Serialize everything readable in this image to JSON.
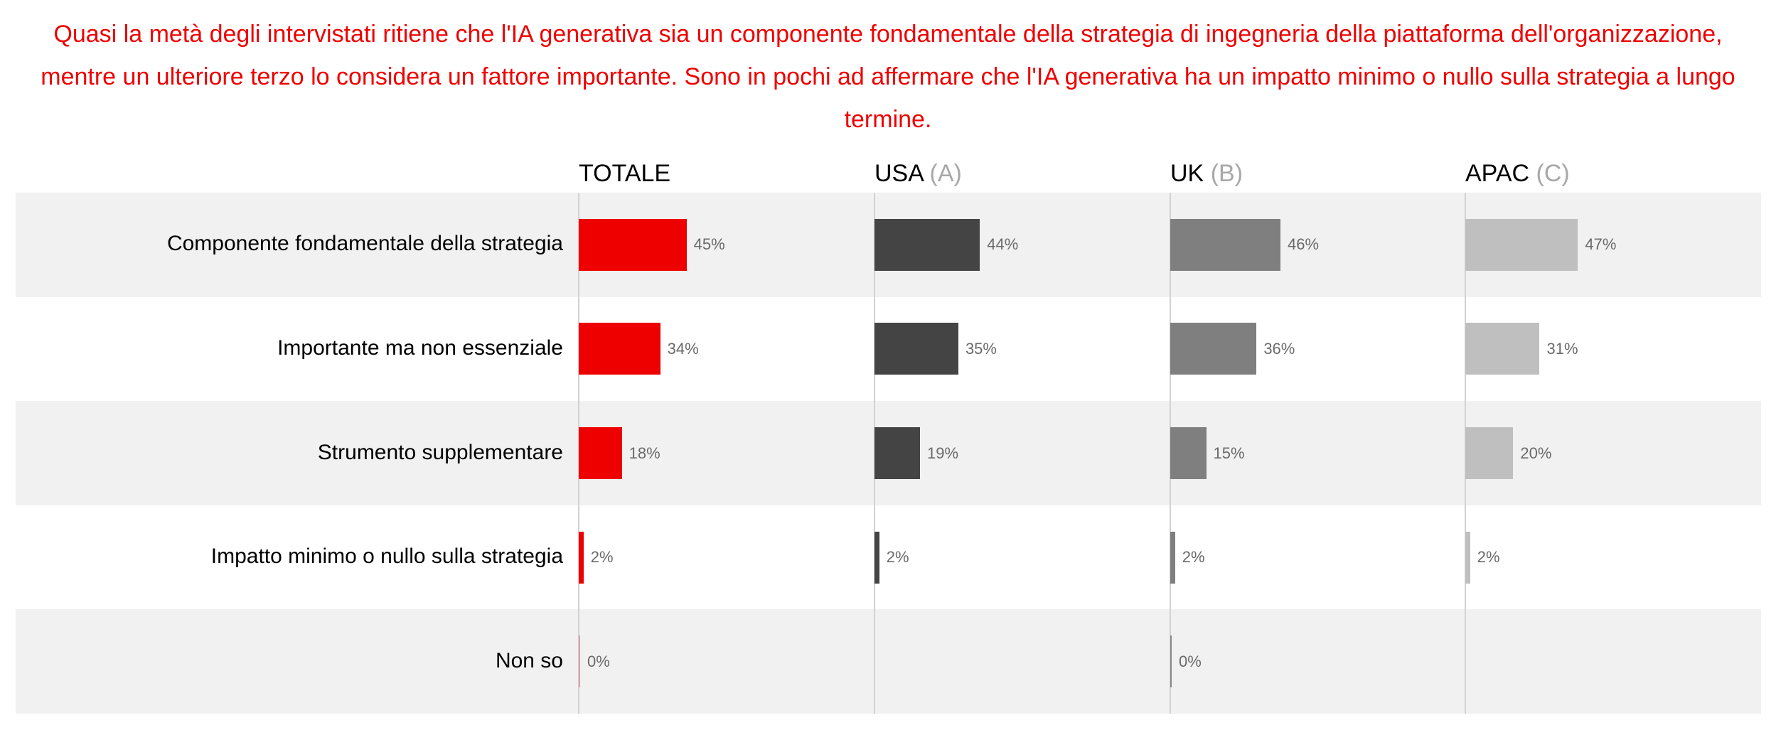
{
  "title": "Quasi la metà degli intervistati ritiene che l'IA generativa sia un componente fondamentale della strategia di ingegneria della piattaforma dell'organizzazione, mentre un ulteriore terzo lo considera un fattore importante. Sono in pochi ad affermare che l'IA generativa ha un impatto minimo o nullo sulla strategia a lungo termine.",
  "chart_data": {
    "type": "bar",
    "orientation": "horizontal",
    "grid": false,
    "categories": [
      "Componente fondamentale della strategia",
      "Importante ma non essenziale",
      "Strumento supplementare",
      "Impatto minimo o nullo sulla strategia",
      "Non so"
    ],
    "series": [
      {
        "name": "TOTALE",
        "suffix": "",
        "color": "#ee0000",
        "values": [
          45,
          34,
          18,
          2,
          0
        ]
      },
      {
        "name": "USA",
        "suffix": "(A)",
        "color": "#444444",
        "values": [
          44,
          35,
          19,
          2,
          null
        ]
      },
      {
        "name": "UK",
        "suffix": "(B)",
        "color": "#7f7f7f",
        "values": [
          46,
          36,
          15,
          2,
          0
        ]
      },
      {
        "name": "APAC",
        "suffix": "(C)",
        "color": "#bfbfbf",
        "values": [
          47,
          31,
          20,
          2,
          null
        ]
      }
    ],
    "value_format": "{v}%",
    "row_band_color": "#f1f1f1"
  }
}
